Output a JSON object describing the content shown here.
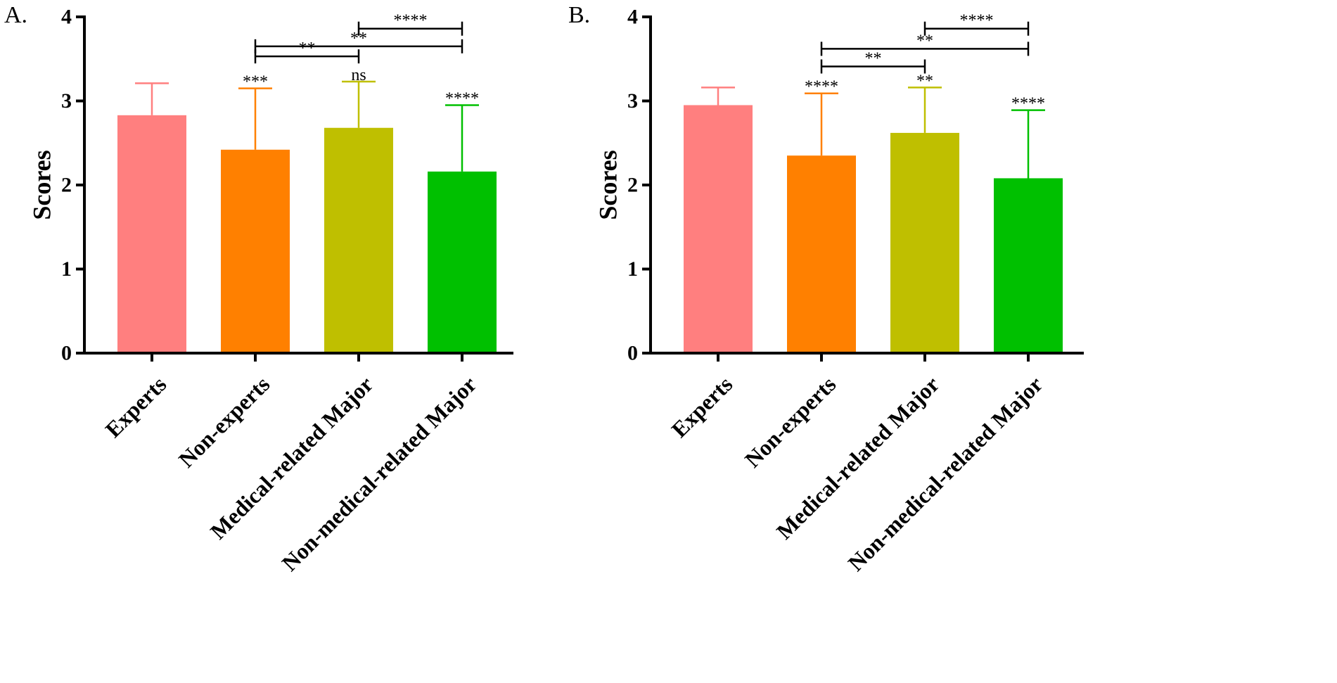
{
  "chart_data": [
    {
      "panel_label": "A.",
      "type": "bar",
      "ylabel": "Scores",
      "ylim": [
        0,
        4
      ],
      "yticks": [
        "0",
        "1",
        "2",
        "3",
        "4"
      ],
      "categories": [
        "Experts",
        "Non-experts",
        "Medical-related Major",
        "Non-medical-related Major"
      ],
      "colors": [
        "#ff7f7f",
        "#ff8000",
        "#bfbf00",
        "#00c000"
      ],
      "values": [
        2.83,
        2.42,
        2.68,
        2.16
      ],
      "errors": [
        0.38,
        0.73,
        0.55,
        0.79
      ],
      "significance": [
        "",
        "***",
        "ns",
        "****"
      ],
      "comparisons": [
        {
          "from": 1,
          "to": 2,
          "y": 3.53,
          "label": "**"
        },
        {
          "from": 1,
          "to": 3,
          "y": 3.65,
          "label": "**"
        },
        {
          "from": 2,
          "to": 3,
          "y": 3.86,
          "label": "****"
        }
      ]
    },
    {
      "panel_label": "B.",
      "type": "bar",
      "ylabel": "Scores",
      "ylim": [
        0,
        4
      ],
      "yticks": [
        "0",
        "1",
        "2",
        "3",
        "4"
      ],
      "categories": [
        "Experts",
        "Non-experts",
        "Medical-related Major",
        "Non-medical-related Major"
      ],
      "colors": [
        "#ff7f7f",
        "#ff8000",
        "#bfbf00",
        "#00c000"
      ],
      "values": [
        2.95,
        2.35,
        2.62,
        2.08
      ],
      "errors": [
        0.21,
        0.74,
        0.54,
        0.81
      ],
      "significance": [
        "",
        "****",
        "**",
        "****"
      ],
      "comparisons": [
        {
          "from": 1,
          "to": 2,
          "y": 3.41,
          "label": "**"
        },
        {
          "from": 1,
          "to": 3,
          "y": 3.62,
          "label": "**"
        },
        {
          "from": 2,
          "to": 3,
          "y": 3.86,
          "label": "****"
        }
      ]
    }
  ]
}
